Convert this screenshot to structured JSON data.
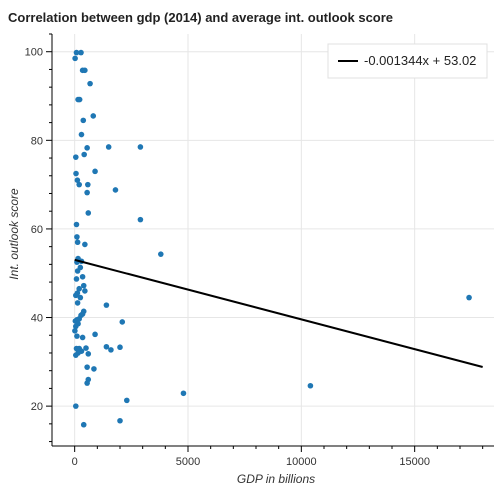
{
  "chart_data": {
    "type": "scatter",
    "title": "Correlation between gdp (2014) and average int. outlook score",
    "xlabel": "GDP in billions",
    "ylabel": "Int. outlook score",
    "xlim": [
      -1000,
      18500
    ],
    "ylim": [
      11,
      104
    ],
    "xticks": [
      0,
      5000,
      10000,
      15000
    ],
    "yticks": [
      20,
      40,
      60,
      80,
      100
    ],
    "grid": true,
    "legend_position": "top-right",
    "point_color": "#1f77b4",
    "line_color": "#000000",
    "points": [
      {
        "x": 80,
        "y": 99.8
      },
      {
        "x": 280,
        "y": 99.8
      },
      {
        "x": 20,
        "y": 98.5
      },
      {
        "x": 150,
        "y": 89.2
      },
      {
        "x": 220,
        "y": 89.2
      },
      {
        "x": 350,
        "y": 95.8
      },
      {
        "x": 450,
        "y": 95.8
      },
      {
        "x": 680,
        "y": 92.8
      },
      {
        "x": 820,
        "y": 85.5
      },
      {
        "x": 380,
        "y": 84.5
      },
      {
        "x": 300,
        "y": 81.3
      },
      {
        "x": 1500,
        "y": 78.5
      },
      {
        "x": 2900,
        "y": 78.5
      },
      {
        "x": 550,
        "y": 78.3
      },
      {
        "x": 420,
        "y": 76.8
      },
      {
        "x": 50,
        "y": 76.2
      },
      {
        "x": 900,
        "y": 73.0
      },
      {
        "x": 60,
        "y": 72.5
      },
      {
        "x": 120,
        "y": 71.0
      },
      {
        "x": 200,
        "y": 70.0
      },
      {
        "x": 580,
        "y": 70.0
      },
      {
        "x": 1800,
        "y": 68.8
      },
      {
        "x": 550,
        "y": 68.2
      },
      {
        "x": 600,
        "y": 63.6
      },
      {
        "x": 2900,
        "y": 62.1
      },
      {
        "x": 80,
        "y": 61.0
      },
      {
        "x": 100,
        "y": 58.2
      },
      {
        "x": 130,
        "y": 57.0
      },
      {
        "x": 3800,
        "y": 54.3
      },
      {
        "x": 450,
        "y": 56.5
      },
      {
        "x": 150,
        "y": 53.3
      },
      {
        "x": 300,
        "y": 52.7
      },
      {
        "x": 100,
        "y": 52.5
      },
      {
        "x": 250,
        "y": 51.3
      },
      {
        "x": 130,
        "y": 50.5
      },
      {
        "x": 350,
        "y": 49.2
      },
      {
        "x": 80,
        "y": 48.7
      },
      {
        "x": 400,
        "y": 47.2
      },
      {
        "x": 200,
        "y": 46.5
      },
      {
        "x": 450,
        "y": 46.0
      },
      {
        "x": 120,
        "y": 45.5
      },
      {
        "x": 50,
        "y": 45.0
      },
      {
        "x": 250,
        "y": 44.5
      },
      {
        "x": 17400,
        "y": 44.5
      },
      {
        "x": 130,
        "y": 43.3
      },
      {
        "x": 1400,
        "y": 42.8
      },
      {
        "x": 400,
        "y": 41.4
      },
      {
        "x": 350,
        "y": 40.8
      },
      {
        "x": 280,
        "y": 40.5
      },
      {
        "x": 200,
        "y": 39.7
      },
      {
        "x": 100,
        "y": 39.5
      },
      {
        "x": 30,
        "y": 39.2
      },
      {
        "x": 2100,
        "y": 39.0
      },
      {
        "x": 150,
        "y": 38.6
      },
      {
        "x": 50,
        "y": 38.0
      },
      {
        "x": 10,
        "y": 37.0
      },
      {
        "x": 900,
        "y": 36.2
      },
      {
        "x": 100,
        "y": 35.8
      },
      {
        "x": 350,
        "y": 35.5
      },
      {
        "x": 1400,
        "y": 33.4
      },
      {
        "x": 2000,
        "y": 33.3
      },
      {
        "x": 500,
        "y": 33.1
      },
      {
        "x": 200,
        "y": 33.0
      },
      {
        "x": 80,
        "y": 33.0
      },
      {
        "x": 1600,
        "y": 32.7
      },
      {
        "x": 300,
        "y": 32.4
      },
      {
        "x": 150,
        "y": 32.0
      },
      {
        "x": 50,
        "y": 31.5
      },
      {
        "x": 600,
        "y": 31.8
      },
      {
        "x": 550,
        "y": 28.8
      },
      {
        "x": 850,
        "y": 28.4
      },
      {
        "x": 600,
        "y": 26.0
      },
      {
        "x": 550,
        "y": 25.2
      },
      {
        "x": 10400,
        "y": 24.6
      },
      {
        "x": 4800,
        "y": 22.9
      },
      {
        "x": 2300,
        "y": 21.3
      },
      {
        "x": 50,
        "y": 20.0
      },
      {
        "x": 2000,
        "y": 16.7
      },
      {
        "x": 400,
        "y": 15.8
      }
    ],
    "regression": {
      "label": "-0.001344x + 53.02",
      "slope": -0.001344,
      "intercept": 53.02,
      "x_range": [
        0,
        18000
      ]
    }
  }
}
